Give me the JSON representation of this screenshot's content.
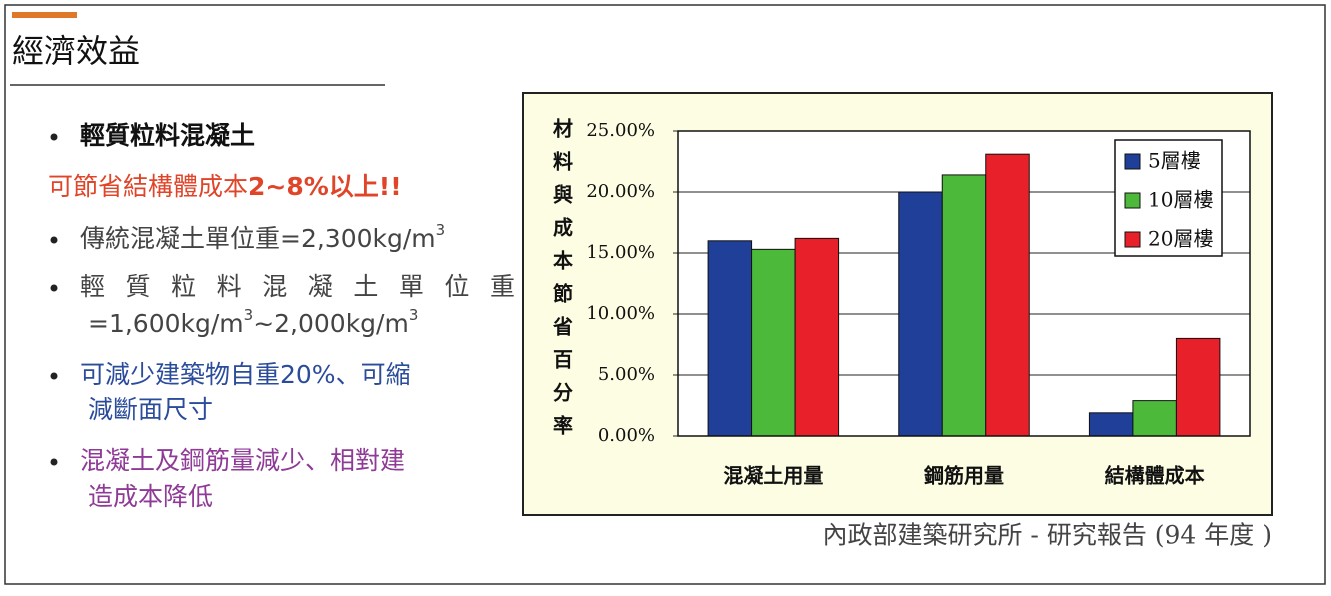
{
  "slide": {
    "title": "經濟效益",
    "lines": [
      {
        "parts": [
          {
            "text": "輕質粒料混凝土"
          }
        ]
      },
      {
        "parts": [
          {
            "text": "可節省結構體成本"
          },
          {
            "strong": "2~8%以上!!"
          }
        ]
      },
      {
        "parts": [
          {
            "text": "傳統混凝土單位重=2,300kg/m"
          },
          {
            "sup": "3"
          }
        ]
      },
      {
        "parts": [
          {
            "text": "輕質粒料混凝土單位重"
          }
        ]
      },
      {
        "parts": [
          {
            "text": "=1,600kg/m"
          },
          {
            "sup": "3"
          },
          {
            "text": "~2,000kg/m"
          },
          {
            "sup": "3"
          }
        ]
      },
      {
        "parts": [
          {
            "text": "可減少建築物自重20%、可縮"
          }
        ]
      },
      {
        "parts": [
          {
            "text": "減斷面尺寸"
          }
        ]
      },
      {
        "parts": [
          {
            "text": "混凝土及鋼筋量減少、相對建"
          }
        ]
      },
      {
        "parts": [
          {
            "text": "造成本降低"
          }
        ]
      }
    ],
    "source": "內政部建築研究所 - 研究報告 (94 年度 )"
  },
  "chart_data": {
    "type": "bar",
    "y_label": "材料與成本節省百分率",
    "categories": [
      "混凝土用量",
      "鋼筋用量",
      "結構體成本"
    ],
    "series": [
      {
        "name": "5層樓",
        "color": "#1f3f99",
        "values": [
          16.0,
          20.0,
          1.9
        ]
      },
      {
        "name": "10層樓",
        "color": "#4cb93a",
        "values": [
          15.3,
          21.4,
          2.9
        ]
      },
      {
        "name": "20層樓",
        "color": "#e8202a",
        "values": [
          16.2,
          23.1,
          8.0
        ]
      }
    ],
    "ylim": [
      0,
      25
    ],
    "yticks": [
      {
        "value": 0,
        "label": "0.00%"
      },
      {
        "value": 5,
        "label": "5.00%"
      },
      {
        "value": 10,
        "label": "10.00%"
      },
      {
        "value": 15,
        "label": "15.00%"
      },
      {
        "value": 20,
        "label": "20.00%"
      },
      {
        "value": 25,
        "label": "25.00%"
      }
    ],
    "grid": true,
    "legend": "upper right"
  }
}
